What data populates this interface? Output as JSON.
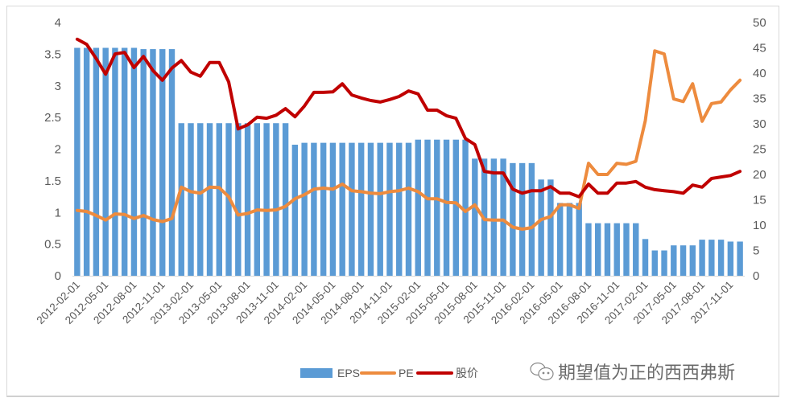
{
  "chart_data": {
    "type": "bar+line",
    "title": "",
    "categories": [
      "2012-02-01",
      "2012-03-01",
      "2012-04-01",
      "2012-05-01",
      "2012-06-01",
      "2012-07-01",
      "2012-08-01",
      "2012-09-01",
      "2012-10-01",
      "2012-11-01",
      "2012-12-01",
      "2013-01-01",
      "2013-02-01",
      "2013-03-01",
      "2013-04-01",
      "2013-05-01",
      "2013-06-01",
      "2013-07-01",
      "2013-08-01",
      "2013-09-01",
      "2013-10-01",
      "2013-11-01",
      "2013-12-01",
      "2014-01-01",
      "2014-02-01",
      "2014-03-01",
      "2014-04-01",
      "2014-05-01",
      "2014-06-01",
      "2014-07-01",
      "2014-08-01",
      "2014-09-01",
      "2014-10-01",
      "2014-11-01",
      "2014-12-01",
      "2015-01-01",
      "2015-02-01",
      "2015-03-01",
      "2015-04-01",
      "2015-05-01",
      "2015-06-01",
      "2015-07-01",
      "2015-08-01",
      "2015-09-01",
      "2015-10-01",
      "2015-11-01",
      "2015-12-01",
      "2016-01-01",
      "2016-02-01",
      "2016-03-01",
      "2016-04-01",
      "2016-05-01",
      "2016-06-01",
      "2016-07-01",
      "2016-08-01",
      "2016-09-01",
      "2016-10-01",
      "2016-11-01",
      "2016-12-01",
      "2017-01-01",
      "2017-02-01",
      "2017-03-01",
      "2017-04-01",
      "2017-05-01",
      "2017-06-01",
      "2017-07-01",
      "2017-08-01",
      "2017-09-01",
      "2017-10-01",
      "2017-11-01",
      "2017-12-01"
    ],
    "x_tick_every": 3,
    "y_left": {
      "range": [
        0,
        4
      ],
      "ticks": [
        "0",
        "0.5",
        "1",
        "1.5",
        "2",
        "2.5",
        "3",
        "3.5",
        "4"
      ]
    },
    "y_right": {
      "range": [
        0,
        50
      ],
      "ticks": [
        "0",
        "5",
        "10",
        "15",
        "20",
        "25",
        "30",
        "35",
        "40",
        "45",
        "50"
      ]
    },
    "grid": false,
    "legend_position": "bottom",
    "series": [
      {
        "name": "EPS",
        "type": "bar",
        "axis": "left",
        "color": "#5b9bd5",
        "values": [
          3.6,
          3.6,
          3.6,
          3.6,
          3.6,
          3.6,
          3.6,
          3.58,
          3.58,
          3.58,
          3.58,
          2.41,
          2.41,
          2.41,
          2.41,
          2.41,
          2.41,
          2.41,
          2.41,
          2.41,
          2.41,
          2.41,
          2.41,
          2.07,
          2.1,
          2.1,
          2.1,
          2.1,
          2.1,
          2.1,
          2.1,
          2.1,
          2.1,
          2.1,
          2.1,
          2.1,
          2.15,
          2.15,
          2.15,
          2.15,
          2.15,
          2.15,
          1.85,
          1.85,
          1.85,
          1.85,
          1.78,
          1.78,
          1.78,
          1.52,
          1.52,
          1.15,
          1.15,
          1.15,
          0.83,
          0.83,
          0.83,
          0.83,
          0.83,
          0.83,
          0.58,
          0.4,
          0.4,
          0.48,
          0.48,
          0.48,
          0.57,
          0.57,
          0.57,
          0.54,
          0.54
        ]
      },
      {
        "name": "PE",
        "type": "line",
        "axis": "right",
        "color": "#ed8b3e",
        "values": [
          12.9,
          12.7,
          11.9,
          11.0,
          12.2,
          12.1,
          11.3,
          11.9,
          11.1,
          10.7,
          11.3,
          17.5,
          16.6,
          16.3,
          17.5,
          17.4,
          15.6,
          12.0,
          12.3,
          13.0,
          12.9,
          13.0,
          13.7,
          15.2,
          16.0,
          17.1,
          17.3,
          17.1,
          18.1,
          16.8,
          16.6,
          16.3,
          16.2,
          16.6,
          16.8,
          17.3,
          16.6,
          15.2,
          15.2,
          14.5,
          14.4,
          12.7,
          14.0,
          11.1,
          11.0,
          11.0,
          9.6,
          9.2,
          9.5,
          11.1,
          11.7,
          14.0,
          14.0,
          13.3,
          22.2,
          20.0,
          20.0,
          22.2,
          22.0,
          22.6,
          30.6,
          44.4,
          43.8,
          34.9,
          34.4,
          37.9,
          30.5,
          34.0,
          34.3,
          36.7,
          38.6
        ]
      },
      {
        "name": "股价",
        "type": "line",
        "axis": "right",
        "color": "#c00000",
        "values": [
          46.7,
          45.7,
          42.9,
          39.8,
          43.8,
          44.1,
          41.1,
          43.3,
          40.5,
          38.6,
          41.0,
          42.5,
          40.2,
          39.4,
          42.1,
          42.1,
          38.3,
          29.0,
          29.8,
          31.3,
          31.1,
          31.7,
          33.0,
          31.4,
          33.5,
          36.2,
          36.2,
          36.3,
          37.9,
          35.7,
          35.1,
          34.6,
          34.3,
          34.8,
          35.4,
          36.5,
          35.9,
          32.7,
          32.7,
          31.6,
          31.1,
          27.1,
          25.9,
          20.6,
          20.3,
          20.3,
          17.1,
          16.3,
          16.8,
          16.8,
          17.6,
          16.3,
          16.3,
          15.6,
          18.1,
          16.3,
          16.3,
          18.3,
          18.3,
          18.6,
          17.5,
          17.0,
          16.8,
          16.6,
          16.3,
          17.9,
          17.5,
          19.2,
          19.5,
          19.8,
          20.6
        ]
      }
    ]
  },
  "watermark": {
    "text": "期望值为正的西西弗斯",
    "icon": "wechat-icon"
  }
}
